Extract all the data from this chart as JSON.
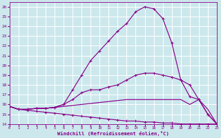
{
  "background_color": "#cce8ed",
  "grid_color": "#b0d8e0",
  "line_color": "#880088",
  "xlabel": "Windchill (Refroidissement éolien,°C)",
  "xlim": [
    0,
    23
  ],
  "ylim": [
    14,
    26.5
  ],
  "yticks": [
    14,
    15,
    16,
    17,
    18,
    19,
    20,
    21,
    22,
    23,
    24,
    25,
    26
  ],
  "xticks": [
    0,
    1,
    2,
    3,
    4,
    5,
    6,
    7,
    8,
    9,
    10,
    11,
    12,
    13,
    14,
    15,
    16,
    17,
    18,
    19,
    20,
    21,
    22,
    23
  ],
  "series": [
    {
      "x": [
        0,
        1,
        2,
        3,
        4,
        5,
        6,
        7,
        8,
        9,
        10,
        11,
        12,
        13,
        14,
        15,
        16,
        17,
        18,
        19,
        20,
        21,
        22,
        23
      ],
      "y": [
        15.8,
        15.5,
        15.5,
        15.6,
        15.6,
        15.7,
        16.0,
        17.5,
        19.0,
        20.5,
        21.5,
        22.5,
        23.5,
        24.3,
        25.5,
        26.0,
        25.8,
        24.8,
        22.3,
        18.5,
        16.8,
        16.5,
        15.0,
        14.0
      ],
      "marker": true
    },
    {
      "x": [
        0,
        1,
        2,
        3,
        4,
        5,
        6,
        7,
        8,
        9,
        10,
        11,
        12,
        13,
        14,
        15,
        16,
        17,
        18,
        19,
        20,
        21,
        22,
        23
      ],
      "y": [
        15.8,
        15.5,
        15.5,
        15.6,
        15.6,
        15.7,
        16.0,
        16.5,
        17.2,
        17.5,
        17.5,
        17.8,
        18.0,
        18.5,
        19.0,
        19.2,
        19.2,
        19.0,
        18.8,
        18.5,
        18.0,
        16.5,
        15.0,
        14.0
      ],
      "marker": true
    },
    {
      "x": [
        0,
        1,
        2,
        3,
        4,
        5,
        6,
        7,
        8,
        9,
        10,
        11,
        12,
        13,
        14,
        15,
        16,
        17,
        18,
        19,
        20,
        21,
        22,
        23
      ],
      "y": [
        15.8,
        15.5,
        15.5,
        15.6,
        15.6,
        15.7,
        15.8,
        15.9,
        16.0,
        16.1,
        16.2,
        16.3,
        16.4,
        16.5,
        16.5,
        16.5,
        16.5,
        16.5,
        16.5,
        16.5,
        16.0,
        16.5,
        15.5,
        14.0
      ],
      "marker": false
    },
    {
      "x": [
        0,
        1,
        2,
        3,
        4,
        5,
        6,
        7,
        8,
        9,
        10,
        11,
        12,
        13,
        14,
        15,
        16,
        17,
        18,
        19,
        20,
        21,
        22,
        23
      ],
      "y": [
        15.8,
        15.5,
        15.4,
        15.3,
        15.2,
        15.1,
        15.0,
        14.9,
        14.8,
        14.7,
        14.6,
        14.5,
        14.4,
        14.3,
        14.3,
        14.2,
        14.2,
        14.1,
        14.1,
        14.0,
        14.0,
        14.0,
        14.0,
        14.0
      ],
      "marker": true
    }
  ]
}
